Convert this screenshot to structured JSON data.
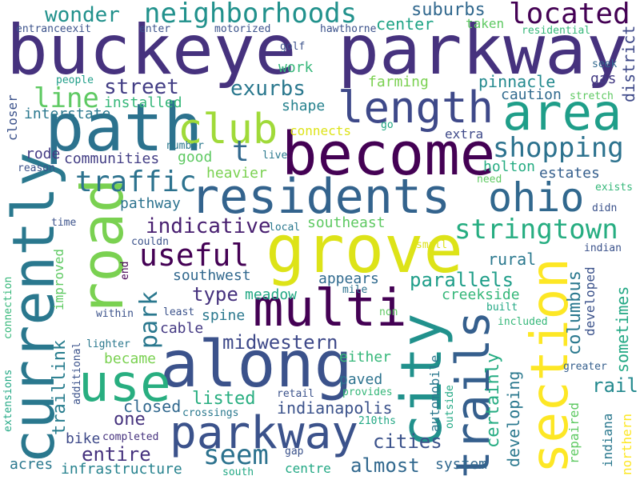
{
  "words": [
    {
      "text": "buckeye parkway",
      "color": "#46327e"
    },
    {
      "text": "path",
      "color": "#2c728e"
    },
    {
      "text": "become",
      "color": "#440154"
    },
    {
      "text": "residents",
      "color": "#33638d"
    },
    {
      "text": "grove",
      "color": "#dde318"
    },
    {
      "text": "along",
      "color": "#3b528b"
    },
    {
      "text": "multi",
      "color": "#440154"
    },
    {
      "text": "city",
      "color": "#21918c"
    },
    {
      "text": "currently",
      "color": "#2a788e"
    },
    {
      "text": "road",
      "color": "#7ad151"
    },
    {
      "text": "section",
      "color": "#fde725"
    },
    {
      "text": "trails",
      "color": "#355f8d"
    },
    {
      "text": "use",
      "color": "#28ae80"
    },
    {
      "text": "parkway",
      "color": "#3b528b"
    },
    {
      "text": "area",
      "color": "#1f9e89"
    },
    {
      "text": "length",
      "color": "#3e4989"
    },
    {
      "text": "club",
      "color": "#a0da39"
    },
    {
      "text": "ohio",
      "color": "#31688e"
    },
    {
      "text": "shopping",
      "color": "#2c728e"
    },
    {
      "text": "located",
      "color": "#440154"
    },
    {
      "text": "neighborhoods",
      "color": "#21918c"
    },
    {
      "text": "traffic",
      "color": "#2c728e"
    },
    {
      "text": "stringtown",
      "color": "#26ad81"
    },
    {
      "text": "useful",
      "color": "#440154"
    },
    {
      "text": "indicative",
      "color": "#481f70"
    },
    {
      "text": "seem",
      "color": "#2c728e"
    },
    {
      "text": "park",
      "color": "#2a788e"
    },
    {
      "text": "t",
      "color": "#31688e"
    },
    {
      "text": "line",
      "color": "#5ec962"
    },
    {
      "text": "wonder",
      "color": "#21918c"
    },
    {
      "text": "exurbs",
      "color": "#2a788e"
    },
    {
      "text": "street",
      "color": "#433e85"
    },
    {
      "text": "suburbs",
      "color": "#31688e"
    },
    {
      "text": "center",
      "color": "#20a486"
    },
    {
      "text": "parallels",
      "color": "#1f9e89"
    },
    {
      "text": "midwestern",
      "color": "#3e4989"
    },
    {
      "text": "cities",
      "color": "#3b528b"
    },
    {
      "text": "almost",
      "color": "#31688e"
    },
    {
      "text": "entire",
      "color": "#46327e"
    },
    {
      "text": "rail",
      "color": "#23898e"
    },
    {
      "text": "columbus",
      "color": "#2a788e"
    },
    {
      "text": "sometimes",
      "color": "#22a884"
    },
    {
      "text": "developing",
      "color": "#2a788e"
    },
    {
      "text": "certainly",
      "color": "#25ac82"
    },
    {
      "text": "traillink",
      "color": "#287d8e"
    },
    {
      "text": "indianapolis",
      "color": "#3b528b"
    },
    {
      "text": "type",
      "color": "#46327e"
    },
    {
      "text": "rural",
      "color": "#2a788e"
    },
    {
      "text": "pinnacle",
      "color": "#23898e"
    },
    {
      "text": "caution",
      "color": "#306a8e"
    },
    {
      "text": "gas",
      "color": "#443b84"
    },
    {
      "text": "district",
      "color": "#3e4989"
    },
    {
      "text": "one",
      "color": "#46337e"
    },
    {
      "text": "closed",
      "color": "#31688e"
    },
    {
      "text": "listed",
      "color": "#28ae80"
    },
    {
      "text": "communities",
      "color": "#433e85"
    },
    {
      "text": "installed",
      "color": "#35b779"
    },
    {
      "text": "interstate",
      "color": "#2a788e"
    },
    {
      "text": "farming",
      "color": "#7ad151"
    },
    {
      "text": "shape",
      "color": "#26828e"
    },
    {
      "text": "work",
      "color": "#35b779"
    },
    {
      "text": "holton",
      "color": "#25ac82"
    },
    {
      "text": "estates",
      "color": "#355f8d"
    },
    {
      "text": "pathway",
      "color": "#2c728e"
    },
    {
      "text": "good",
      "color": "#5ec962"
    },
    {
      "text": "heavier",
      "color": "#7ad151"
    },
    {
      "text": "southeast",
      "color": "#5ec962"
    },
    {
      "text": "southwest",
      "color": "#31688e"
    },
    {
      "text": "appears",
      "color": "#306a8e"
    },
    {
      "text": "meadow",
      "color": "#22a884"
    },
    {
      "text": "creekside",
      "color": "#35b779"
    },
    {
      "text": "spine",
      "color": "#2a788e"
    },
    {
      "text": "cable",
      "color": "#443983"
    },
    {
      "text": "either",
      "color": "#35b779"
    },
    {
      "text": "paved",
      "color": "#2c728e"
    },
    {
      "text": "became",
      "color": "#7ad151"
    },
    {
      "text": "bike",
      "color": "#3e4989"
    },
    {
      "text": "acres",
      "color": "#2a788e"
    },
    {
      "text": "infrastructure",
      "color": "#26828e"
    },
    {
      "text": "system",
      "color": "#31688e"
    },
    {
      "text": "centre",
      "color": "#22a884"
    },
    {
      "text": "crossings",
      "color": "#2a788e"
    },
    {
      "text": "retail",
      "color": "#3b528b"
    },
    {
      "text": "provides",
      "color": "#35b779"
    },
    {
      "text": "automobile",
      "color": "#2a788e"
    },
    {
      "text": "outside",
      "color": "#22a884"
    },
    {
      "text": "repaired",
      "color": "#5ec962"
    },
    {
      "text": "indiana",
      "color": "#2a788e"
    },
    {
      "text": "northern",
      "color": "#fde725"
    },
    {
      "text": "greater",
      "color": "#355f8d"
    },
    {
      "text": "developed",
      "color": "#3b528b"
    },
    {
      "text": "included",
      "color": "#35b779"
    },
    {
      "text": "built",
      "color": "#22a884"
    },
    {
      "text": "indian",
      "color": "#3b528b"
    },
    {
      "text": "didn",
      "color": "#3b528b"
    },
    {
      "text": "exists",
      "color": "#35b779"
    },
    {
      "text": "need",
      "color": "#5ec962"
    },
    {
      "text": "extra",
      "color": "#3e4989"
    },
    {
      "text": "go",
      "color": "#22a884"
    },
    {
      "text": "connects",
      "color": "#dde318"
    },
    {
      "text": "live",
      "color": "#2a788e"
    },
    {
      "text": "number",
      "color": "#2a788e"
    },
    {
      "text": "reason",
      "color": "#3b528b"
    },
    {
      "text": "closer",
      "color": "#3b528b"
    },
    {
      "text": "rode",
      "color": "#443b84"
    },
    {
      "text": "people",
      "color": "#1f9e89"
    },
    {
      "text": "entranceexit",
      "color": "#3b528b"
    },
    {
      "text": "enter",
      "color": "#3b528b"
    },
    {
      "text": "motorized",
      "color": "#3b528b"
    },
    {
      "text": "hawthorne",
      "color": "#3b528b"
    },
    {
      "text": "golf",
      "color": "#3b528b"
    },
    {
      "text": "taken",
      "color": "#5ec962"
    },
    {
      "text": "residential",
      "color": "#35b779"
    },
    {
      "text": "seek",
      "color": "#31688e"
    },
    {
      "text": "stretch",
      "color": "#5ec962"
    },
    {
      "text": "time",
      "color": "#3b528b"
    },
    {
      "text": "local",
      "color": "#2a788e"
    },
    {
      "text": "small",
      "color": "#dde318"
    },
    {
      "text": "improved",
      "color": "#5ec962"
    },
    {
      "text": "couldn",
      "color": "#3b528b"
    },
    {
      "text": "end",
      "color": "#440154"
    },
    {
      "text": "mile",
      "color": "#2c728e"
    },
    {
      "text": "within",
      "color": "#3b528b"
    },
    {
      "text": "least",
      "color": "#3b528b"
    },
    {
      "text": "non",
      "color": "#5ec962"
    },
    {
      "text": "connection",
      "color": "#35b779"
    },
    {
      "text": "extensions",
      "color": "#22a884"
    },
    {
      "text": "additional",
      "color": "#3b528b"
    },
    {
      "text": "lighter",
      "color": "#2a788e"
    },
    {
      "text": "completed",
      "color": "#46327e"
    },
    {
      "text": "210ths",
      "color": "#22a884"
    },
    {
      "text": "gap",
      "color": "#3b528b"
    },
    {
      "text": "south",
      "color": "#22a884"
    }
  ]
}
